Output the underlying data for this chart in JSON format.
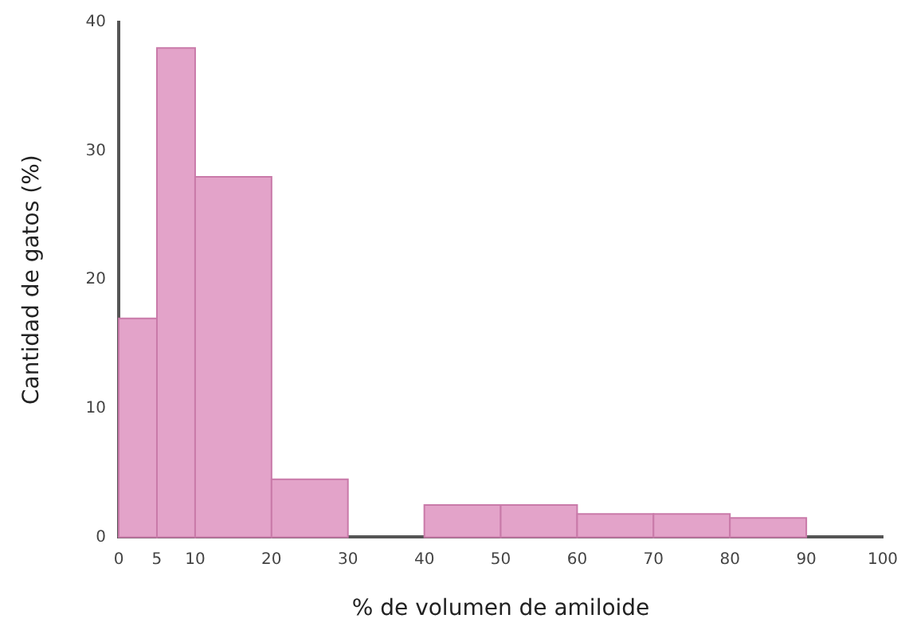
{
  "chart_data": {
    "type": "histogram",
    "xlabel": "% de volumen de amiloide",
    "ylabel": "Cantidad de gatos (%)",
    "bins": [
      0,
      5,
      10,
      20,
      30,
      40,
      50,
      60,
      70,
      80,
      90
    ],
    "values": [
      17,
      38,
      28,
      4.5,
      0,
      2.5,
      2.5,
      1.8,
      1.8,
      1.5
    ],
    "color": "#e3a3c9",
    "xlim": [
      0,
      100
    ],
    "xticks": [
      0,
      5,
      10,
      20,
      30,
      40,
      50,
      60,
      70,
      80,
      90,
      100
    ],
    "ylim": [
      0,
      40
    ],
    "yticks": [
      0,
      10,
      20,
      30,
      40
    ],
    "grid": false
  }
}
